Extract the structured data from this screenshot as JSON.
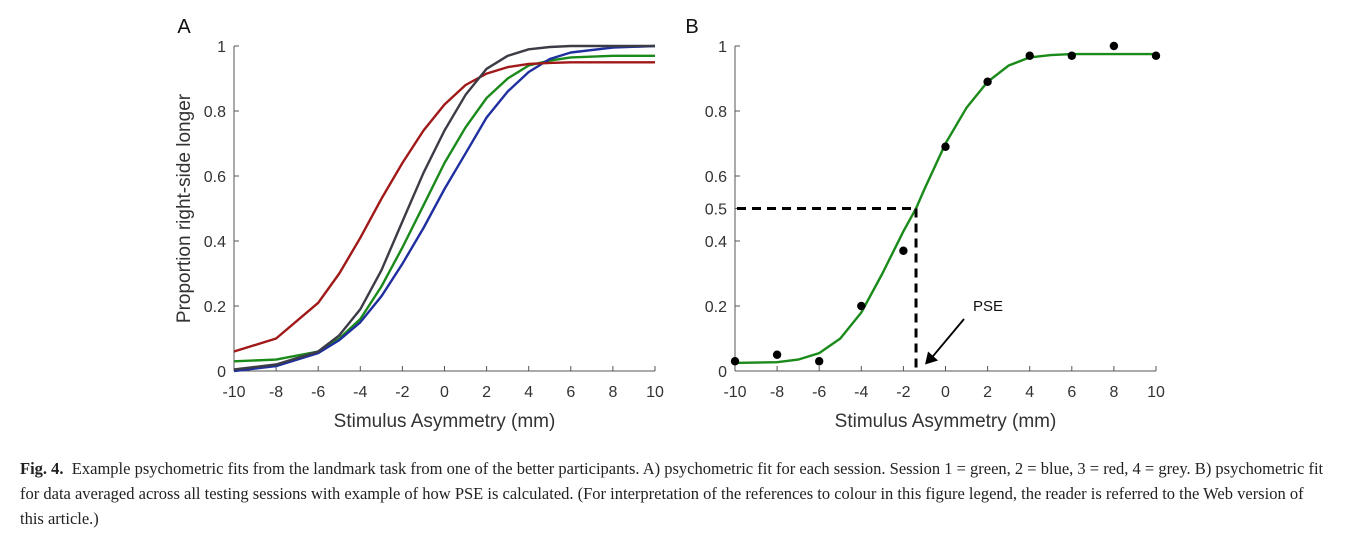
{
  "chart_data": [
    {
      "type": "line",
      "panel_label": "A",
      "xlabel": "Stimulus Asymmetry (mm)",
      "ylabel": "Proportion right-side longer",
      "xlim": [
        -10,
        10
      ],
      "ylim": [
        0,
        1
      ],
      "xticks": [
        -10,
        -8,
        -6,
        -4,
        -2,
        0,
        2,
        4,
        6,
        8,
        10
      ],
      "yticks": [
        0,
        0.2,
        0.4,
        0.6,
        0.8,
        1
      ],
      "ytick_labels": [
        "0",
        "0.2",
        "0.4",
        "0.6",
        "0.8",
        "1"
      ],
      "grid": false,
      "series": [
        {
          "color": "#1a8a1a",
          "x": [
            -10,
            -8,
            -6,
            -5,
            -4,
            -3,
            -2,
            -1,
            0,
            1,
            2,
            3,
            4,
            5,
            6,
            8,
            10
          ],
          "values": [
            0.03,
            0.035,
            0.06,
            0.1,
            0.16,
            0.26,
            0.38,
            0.51,
            0.64,
            0.75,
            0.84,
            0.9,
            0.94,
            0.955,
            0.965,
            0.97,
            0.97
          ]
        },
        {
          "color": "#1f2fa0",
          "x": [
            -10,
            -8,
            -6,
            -5,
            -4,
            -3,
            -2,
            -1,
            0,
            1,
            2,
            3,
            4,
            5,
            6,
            8,
            10
          ],
          "values": [
            0.0,
            0.015,
            0.055,
            0.095,
            0.15,
            0.23,
            0.33,
            0.44,
            0.56,
            0.67,
            0.78,
            0.86,
            0.92,
            0.96,
            0.98,
            0.995,
            1.0
          ]
        },
        {
          "color": "#a01818",
          "x": [
            -10,
            -8,
            -6,
            -5,
            -4,
            -3,
            -2,
            -1,
            0,
            1,
            2,
            3,
            4,
            5,
            6,
            8,
            10
          ],
          "values": [
            0.06,
            0.1,
            0.21,
            0.3,
            0.41,
            0.53,
            0.64,
            0.74,
            0.82,
            0.88,
            0.915,
            0.935,
            0.945,
            0.948,
            0.95,
            0.95,
            0.95
          ]
        },
        {
          "color": "#3c3c46",
          "x": [
            -10,
            -8,
            -6,
            -5,
            -4,
            -3,
            -2,
            -1,
            0,
            1,
            2,
            3,
            4,
            5,
            6,
            8,
            10
          ],
          "values": [
            0.005,
            0.02,
            0.06,
            0.11,
            0.19,
            0.31,
            0.46,
            0.61,
            0.74,
            0.85,
            0.93,
            0.97,
            0.99,
            0.997,
            1.0,
            1.0,
            1.0
          ]
        }
      ]
    },
    {
      "type": "scatter",
      "panel_label": "B",
      "xlabel": "Stimulus Asymmetry (mm)",
      "ylabel": "",
      "xlim": [
        -10,
        10
      ],
      "ylim": [
        0,
        1
      ],
      "xticks": [
        -10,
        -8,
        -6,
        -4,
        -2,
        0,
        2,
        4,
        6,
        8,
        10
      ],
      "yticks": [
        0,
        0.2,
        0.4,
        0.5,
        0.6,
        0.8,
        1
      ],
      "ytick_labels": [
        "0",
        "0.2",
        "0.4",
        "0.5",
        "0.6",
        "0.8",
        "1"
      ],
      "grid": false,
      "points": {
        "x": [
          -10,
          -8,
          -6,
          -4,
          -2,
          0,
          2,
          4,
          6,
          8,
          10
        ],
        "y": [
          0.03,
          0.05,
          0.03,
          0.2,
          0.37,
          0.69,
          0.89,
          0.97,
          0.97,
          1.0,
          0.97
        ]
      },
      "fit": {
        "color": "#1a8a1a",
        "x": [
          -10,
          -8,
          -7,
          -6,
          -5,
          -4,
          -3,
          -2,
          -1.4,
          -1,
          0,
          1,
          2,
          3,
          4,
          5,
          6,
          8,
          10
        ],
        "values": [
          0.025,
          0.027,
          0.035,
          0.055,
          0.1,
          0.18,
          0.3,
          0.43,
          0.5,
          0.56,
          0.7,
          0.81,
          0.89,
          0.94,
          0.965,
          0.972,
          0.975,
          0.975,
          0.975
        ]
      },
      "pse": {
        "x": -1.4,
        "y": 0.5,
        "label": "PSE"
      }
    }
  ],
  "caption": {
    "label": "Fig. 4.",
    "text": "Example psychometric fits from the landmark task from one of the better participants. A) psychometric fit for each session. Session 1 = green, 2 = blue, 3 = red, 4 = grey. B) psychometric fit for data averaged across all testing sessions with example of how PSE is calculated. (For interpretation of the references to colour in this figure legend, the reader is referred to the Web version of this article.)"
  }
}
